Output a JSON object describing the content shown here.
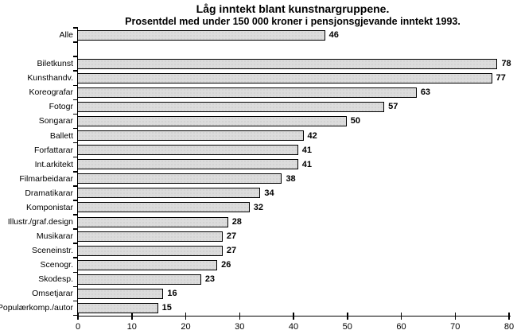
{
  "title": "Låg inntekt blant kunstnargruppene.",
  "subtitle": "Prosentdel med under 150 000 kroner i pensjonsgjevande inntekt 1993.",
  "chart_data": {
    "type": "bar",
    "orientation": "horizontal",
    "title": "Låg inntekt blant kunstnargruppene.",
    "subtitle": "Prosentdel med under 150 000 kroner i pensjonsgjevande inntekt 1993.",
    "categories": [
      "Alle",
      "Biletkunst",
      "Kunsthandv.",
      "Koreografar",
      "Fotogr",
      "Songarar",
      "Ballett",
      "Forfattarar",
      "Int.arkitekt",
      "Filmarbeidarar",
      "Dramatikarar",
      "Komponistar",
      "Illustr./graf.design",
      "Musikarar",
      "Sceneinstr.",
      "Scenogr.",
      "Skodesp.",
      "Omsetjarar",
      "Populærkomp./autor"
    ],
    "values": [
      46,
      78,
      77,
      63,
      57,
      50,
      42,
      41,
      41,
      38,
      34,
      32,
      28,
      27,
      27,
      26,
      23,
      16,
      15
    ],
    "data_labels": [
      46,
      78,
      77,
      63,
      57,
      50,
      42,
      41,
      41,
      38,
      34,
      32,
      28,
      27,
      27,
      26,
      23,
      16,
      15
    ],
    "xlim": [
      0,
      80
    ],
    "x_ticks": [
      0,
      10,
      20,
      30,
      40,
      50,
      60,
      70,
      80
    ],
    "gap_after_index": 0,
    "grid": false,
    "legend": false,
    "bar_fill_color": "#dcdcdc",
    "bar_border_color": "#000000",
    "text_color": "#000000"
  }
}
